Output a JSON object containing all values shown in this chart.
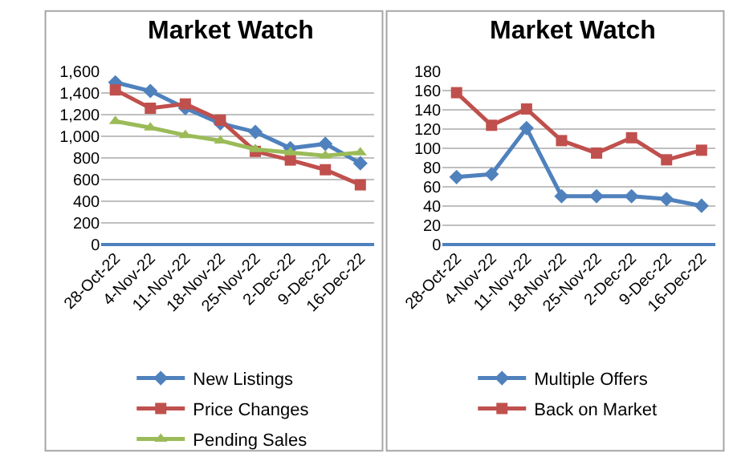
{
  "chart_data": [
    {
      "type": "line",
      "title": "Market Watch",
      "categories": [
        "28-Oct-22",
        "4-Nov-22",
        "11-Nov-22",
        "18-Nov-22",
        "25-Nov-22",
        "2-Dec-22",
        "9-Dec-22",
        "16-Dec-22"
      ],
      "series": [
        {
          "name": "New Listings",
          "color": "#4f81bd",
          "marker": "diamond",
          "values": [
            1500,
            1420,
            1260,
            1120,
            1040,
            890,
            930,
            750
          ]
        },
        {
          "name": "Price Changes",
          "color": "#c0504d",
          "marker": "square",
          "values": [
            1430,
            1260,
            1300,
            1150,
            860,
            780,
            690,
            550
          ]
        },
        {
          "name": "Pending Sales",
          "color": "#9bbb59",
          "marker": "triangle",
          "values": [
            1140,
            1080,
            1010,
            960,
            880,
            850,
            820,
            850
          ]
        }
      ],
      "ylim": [
        0,
        1600
      ],
      "yticks": [
        0,
        200,
        400,
        600,
        800,
        {
          "value": 1000,
          "label": "1,000"
        },
        {
          "value": 1200,
          "label": "1,200"
        },
        {
          "value": 1400,
          "label": "1,400"
        },
        {
          "value": 1600,
          "label": "1,600"
        }
      ],
      "grid": "y",
      "legend": "bottom"
    },
    {
      "type": "line",
      "title": "Market Watch",
      "categories": [
        "28-Oct-22",
        "4-Nov-22",
        "11-Nov-22",
        "18-Nov-22",
        "25-Nov-22",
        "2-Dec-22",
        "9-Dec-22",
        "16-Dec-22"
      ],
      "series": [
        {
          "name": "Multiple Offers",
          "color": "#4f81bd",
          "marker": "diamond",
          "values": [
            70,
            73,
            121,
            50,
            50,
            50,
            47,
            40
          ]
        },
        {
          "name": "Back on Market",
          "color": "#c0504d",
          "marker": "square",
          "values": [
            158,
            124,
            141,
            108,
            95,
            111,
            88,
            98
          ]
        }
      ],
      "ylim": [
        0,
        180
      ],
      "yticks": [
        0,
        20,
        40,
        60,
        80,
        100,
        120,
        140,
        160,
        180
      ],
      "grid": "y",
      "legend": "bottom"
    }
  ]
}
